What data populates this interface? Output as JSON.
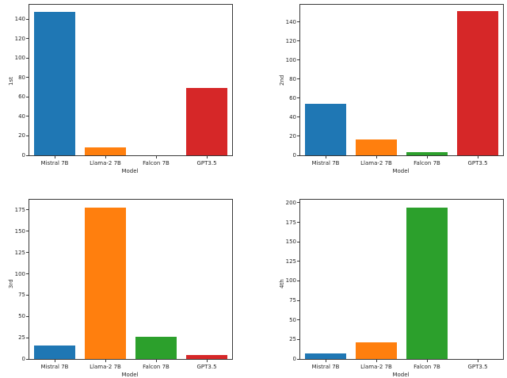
{
  "figure": {
    "background": "#ffffff",
    "spine_color": "#3a3a3a",
    "bar_colors": [
      "#1f77b4",
      "#ff7f0e",
      "#2ca02c",
      "#d62728"
    ],
    "categories": [
      "Mistral 7B",
      "Llama-2 7B",
      "Falcon 7B",
      "GPT3.5"
    ],
    "xlabel": "Model"
  },
  "chart_data": [
    {
      "type": "bar",
      "title": "",
      "ylabel": "1st",
      "xlabel": "Model",
      "categories": [
        "Mistral 7B",
        "Llama-2 7B",
        "Falcon 7B",
        "GPT3.5"
      ],
      "values": [
        148,
        8,
        0,
        69
      ],
      "colors": [
        "#1f77b4",
        "#ff7f0e",
        "#2ca02c",
        "#d62728"
      ],
      "yticks": [
        0,
        20,
        40,
        60,
        80,
        100,
        120,
        140
      ],
      "ylim": [
        0,
        155
      ],
      "grid": false,
      "legend": "none"
    },
    {
      "type": "bar",
      "title": "",
      "ylabel": "2nd",
      "xlabel": "Model",
      "categories": [
        "Mistral 7B",
        "Llama-2 7B",
        "Falcon 7B",
        "GPT3.5"
      ],
      "values": [
        54,
        17,
        3,
        151
      ],
      "colors": [
        "#1f77b4",
        "#ff7f0e",
        "#2ca02c",
        "#d62728"
      ],
      "yticks": [
        0,
        20,
        40,
        60,
        80,
        100,
        120,
        140
      ],
      "ylim": [
        0,
        158
      ],
      "grid": false,
      "legend": "none"
    },
    {
      "type": "bar",
      "title": "",
      "ylabel": "3rd",
      "xlabel": "Model",
      "categories": [
        "Mistral 7B",
        "Llama-2 7B",
        "Falcon 7B",
        "GPT3.5"
      ],
      "values": [
        16,
        178,
        26,
        5
      ],
      "colors": [
        "#1f77b4",
        "#ff7f0e",
        "#2ca02c",
        "#d62728"
      ],
      "yticks": [
        0,
        25,
        50,
        75,
        100,
        125,
        150,
        175
      ],
      "ylim": [
        0,
        187
      ],
      "grid": false,
      "legend": "none"
    },
    {
      "type": "bar",
      "title": "",
      "ylabel": "4th",
      "xlabel": "Model",
      "categories": [
        "Mistral 7B",
        "Llama-2 7B",
        "Falcon 7B",
        "GPT3.5"
      ],
      "values": [
        7,
        21,
        194,
        0
      ],
      "colors": [
        "#1f77b4",
        "#ff7f0e",
        "#2ca02c",
        "#d62728"
      ],
      "yticks": [
        0,
        25,
        50,
        75,
        100,
        125,
        150,
        175,
        200
      ],
      "ylim": [
        0,
        204
      ],
      "grid": false,
      "legend": "none"
    }
  ]
}
